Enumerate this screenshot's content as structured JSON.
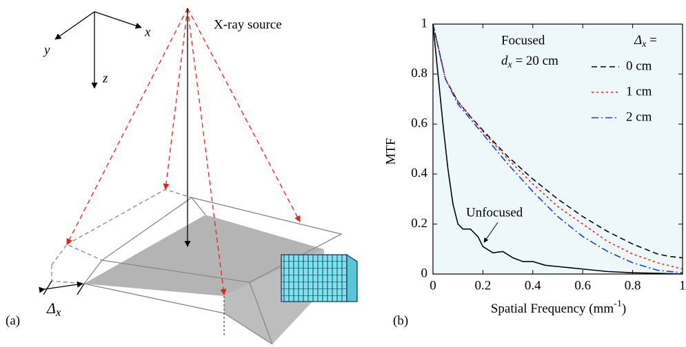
{
  "diagram": {
    "panel_label": "(a)",
    "source_label": "X-ray source",
    "axis_x": "x",
    "axis_y": "y",
    "axis_z": "z",
    "offset_label": {
      "symbol": "Δ",
      "subscript": "x"
    }
  },
  "chart_data": {
    "type": "line",
    "panel_label": "(b)",
    "ylabel": "MTF",
    "xlabel": {
      "text": "Spatial Frequency (mm",
      "superscript": "-1",
      "suffix": ")"
    },
    "xlim": [
      0,
      1
    ],
    "ylim": [
      0,
      1
    ],
    "xticks": [
      0,
      0.2,
      0.4,
      0.6,
      0.8,
      1
    ],
    "yticks": [
      0,
      0.2,
      0.4,
      0.6,
      0.8,
      1
    ],
    "background": "#eef8fb",
    "annotations": {
      "focused": "Focused",
      "distance": {
        "symbol": "d",
        "subscript": "x",
        "suffix": " = 20 cm"
      }
    },
    "legend_title": {
      "symbol": "Δ",
      "subscript": "x",
      "suffix": " ="
    },
    "series": [
      {
        "name": "0 cm",
        "color": "#000000",
        "dash": "dashed",
        "in_legend": true,
        "x": [
          0,
          0.05,
          0.1,
          0.15,
          0.2,
          0.3,
          0.4,
          0.5,
          0.6,
          0.7,
          0.8,
          0.9,
          0.95,
          1
        ],
        "values": [
          1,
          0.78,
          0.69,
          0.63,
          0.575,
          0.47,
          0.38,
          0.3,
          0.23,
          0.17,
          0.12,
          0.08,
          0.07,
          0.065
        ]
      },
      {
        "name": "1 cm",
        "color": "#e8201a",
        "dash": "dotted",
        "in_legend": true,
        "x": [
          0,
          0.05,
          0.1,
          0.15,
          0.2,
          0.3,
          0.4,
          0.5,
          0.6,
          0.7,
          0.8,
          0.9,
          1
        ],
        "values": [
          1,
          0.78,
          0.69,
          0.63,
          0.57,
          0.46,
          0.36,
          0.27,
          0.2,
          0.13,
          0.08,
          0.045,
          0.02
        ]
      },
      {
        "name": "2 cm",
        "color": "#1a3fe0",
        "dash": "dashdot",
        "in_legend": true,
        "x": [
          0,
          0.05,
          0.1,
          0.15,
          0.2,
          0.3,
          0.4,
          0.5,
          0.6,
          0.7,
          0.8,
          0.9,
          1
        ],
        "values": [
          1,
          0.78,
          0.68,
          0.62,
          0.56,
          0.44,
          0.33,
          0.23,
          0.15,
          0.09,
          0.045,
          0.015,
          0.005
        ]
      },
      {
        "name": "Unfocused",
        "color": "#000000",
        "dash": "solid",
        "in_legend": false,
        "x": [
          0,
          0.02,
          0.04,
          0.06,
          0.08,
          0.1,
          0.12,
          0.15,
          0.18,
          0.2,
          0.24,
          0.28,
          0.32,
          0.36,
          0.4,
          0.45,
          0.5,
          0.55,
          0.6,
          0.7,
          0.8,
          0.9,
          1
        ],
        "values": [
          1,
          0.8,
          0.6,
          0.42,
          0.28,
          0.2,
          0.18,
          0.18,
          0.15,
          0.11,
          0.085,
          0.09,
          0.065,
          0.05,
          0.05,
          0.035,
          0.03,
          0.025,
          0.02,
          0.01,
          0.005,
          0.003,
          0
        ]
      }
    ]
  }
}
